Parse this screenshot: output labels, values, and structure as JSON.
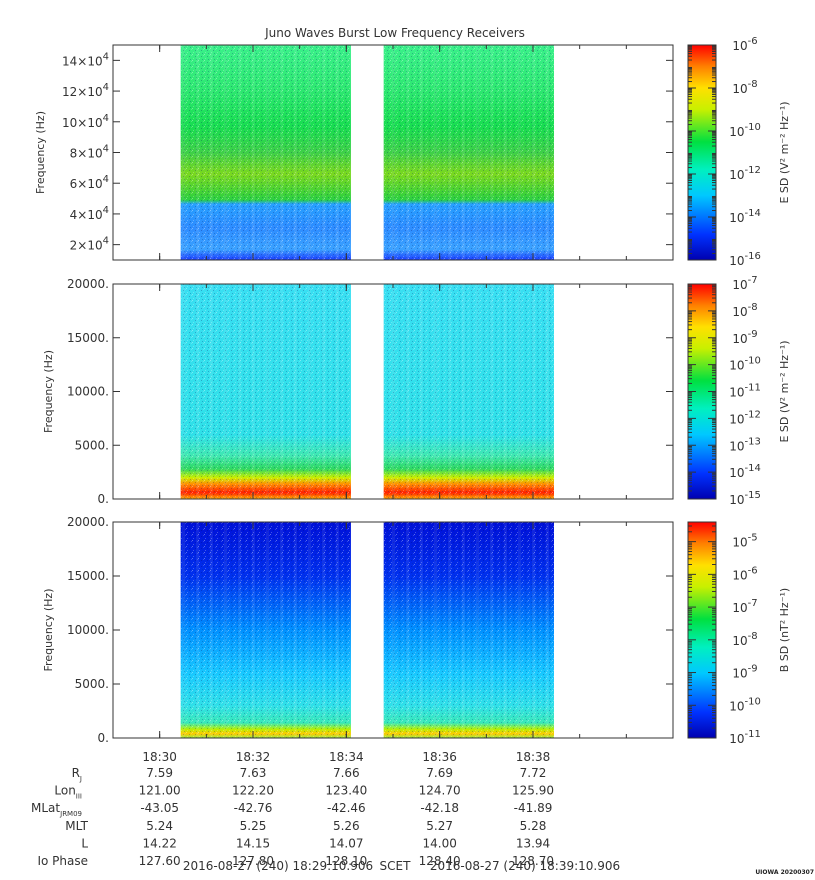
{
  "title": "Juno Waves Burst Low Frequency Receivers",
  "chart_data": [
    {
      "type": "heatmap",
      "panel": "top",
      "ylabel": "Frequency (Hz)",
      "ylim": [
        10000,
        150000
      ],
      "yticks": [
        20000,
        40000,
        60000,
        80000,
        100000,
        120000,
        140000
      ],
      "ytick_labels": [
        {
          "mant": "2×10",
          "exp": "4"
        },
        {
          "mant": "4×10",
          "exp": "4"
        },
        {
          "mant": "6×10",
          "exp": "4"
        },
        {
          "mant": "8×10",
          "exp": "4"
        },
        {
          "mant": "10×10",
          "exp": "4"
        },
        {
          "mant": "12×10",
          "exp": "4"
        },
        {
          "mant": "14×10",
          "exp": "4"
        }
      ],
      "colorbar": {
        "label": "E SD (V² m⁻² Hz⁻¹)",
        "ticks": [
          {
            "mant": "10",
            "exp": "-16"
          },
          {
            "mant": "10",
            "exp": "-14"
          },
          {
            "mant": "10",
            "exp": "-12"
          },
          {
            "mant": "10",
            "exp": "-10"
          },
          {
            "mant": "10",
            "exp": "-8"
          },
          {
            "mant": "10",
            "exp": "-6"
          }
        ],
        "log_range": [
          -16,
          -6
        ]
      },
      "data_segments_minutes": [
        [
          1.45,
          5.1
        ],
        [
          5.8,
          9.45
        ]
      ]
    },
    {
      "type": "heatmap",
      "panel": "middle",
      "ylabel": "Frequency (Hz)",
      "ylim": [
        0,
        20000
      ],
      "yticks": [
        0,
        5000,
        10000,
        15000,
        20000
      ],
      "ytick_labels": [
        "0.",
        "5000.",
        "10000.",
        "15000.",
        "20000."
      ],
      "colorbar": {
        "label": "E SD (V² m⁻² Hz⁻¹)",
        "ticks": [
          {
            "mant": "10",
            "exp": "-15"
          },
          {
            "mant": "10",
            "exp": "-14"
          },
          {
            "mant": "10",
            "exp": "-13"
          },
          {
            "mant": "10",
            "exp": "-12"
          },
          {
            "mant": "10",
            "exp": "-11"
          },
          {
            "mant": "10",
            "exp": "-10"
          },
          {
            "mant": "10",
            "exp": "-9"
          },
          {
            "mant": "10",
            "exp": "-8"
          },
          {
            "mant": "10",
            "exp": "-7"
          }
        ],
        "log_range": [
          -15,
          -7
        ]
      },
      "data_segments_minutes": [
        [
          1.45,
          5.1
        ],
        [
          5.8,
          9.45
        ]
      ]
    },
    {
      "type": "heatmap",
      "panel": "bottom",
      "ylabel": "Frequency (Hz)",
      "ylim": [
        0,
        20000
      ],
      "yticks": [
        0,
        5000,
        10000,
        15000,
        20000
      ],
      "ytick_labels": [
        "0.",
        "5000.",
        "10000.",
        "15000.",
        "20000."
      ],
      "colorbar": {
        "label": "B SD (nT² Hz⁻¹)",
        "ticks": [
          {
            "mant": "10",
            "exp": "-11"
          },
          {
            "mant": "10",
            "exp": "-10"
          },
          {
            "mant": "10",
            "exp": "-9"
          },
          {
            "mant": "10",
            "exp": "-8"
          },
          {
            "mant": "10",
            "exp": "-7"
          },
          {
            "mant": "10",
            "exp": "-6"
          },
          {
            "mant": "10",
            "exp": "-5"
          }
        ],
        "log_range": [
          -11,
          -4.4
        ]
      },
      "data_segments_minutes": [
        [
          1.45,
          5.1
        ],
        [
          5.8,
          9.45
        ]
      ]
    }
  ],
  "xaxis": {
    "range_minutes": [
      0,
      12.0
    ],
    "start_label": "18:29",
    "tick_minutes": [
      1,
      3,
      5,
      7,
      9
    ],
    "tick_labels": [
      "18:30",
      "18:32",
      "18:34",
      "18:36",
      "18:38"
    ]
  },
  "ephemeris": {
    "rows": [
      {
        "label": "R",
        "sub": "J",
        "values": [
          "7.59",
          "7.63",
          "7.66",
          "7.69",
          "7.72"
        ]
      },
      {
        "label": "Lon",
        "sub": "III",
        "values": [
          "121.00",
          "122.20",
          "123.40",
          "124.70",
          "125.90"
        ]
      },
      {
        "label": "MLat",
        "sub": "JRM09",
        "values": [
          "-43.05",
          "-42.76",
          "-42.46",
          "-42.18",
          "-41.89"
        ]
      },
      {
        "label": "MLT",
        "sub": "",
        "values": [
          "5.24",
          "5.25",
          "5.26",
          "5.27",
          "5.28"
        ]
      },
      {
        "label": "L",
        "sub": "",
        "values": [
          "14.22",
          "14.15",
          "14.07",
          "14.00",
          "13.94"
        ]
      },
      {
        "label": "Io Phase",
        "sub": "",
        "values": [
          "127.60",
          "127.80",
          "128.10",
          "128.40",
          "128.70"
        ]
      }
    ]
  },
  "footer": {
    "start": "2016-08-27 (240) 18:29:10.906",
    "mid": "SCET",
    "end": "2016-08-27 (240) 18:39:10.906"
  },
  "credit": "UIOWA 20200307"
}
